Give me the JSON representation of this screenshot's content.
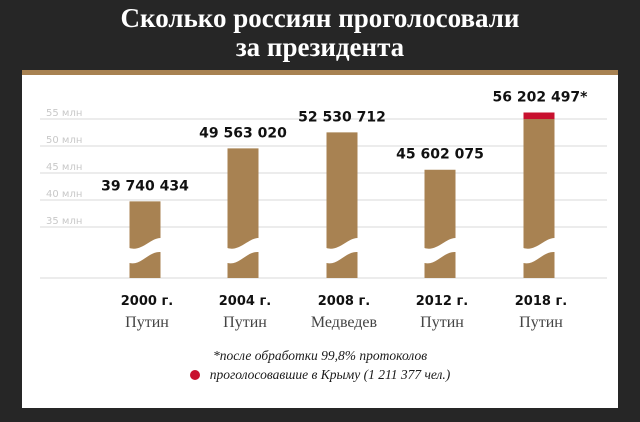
{
  "title_line1": "Сколько россиян проголосовали",
  "title_line2": "за президента",
  "colors": {
    "bar": "#a88252",
    "crimea": "#c8102e",
    "grid": "#d9d9d9",
    "tick": "#c8c8c8",
    "frame": "#a88252"
  },
  "chart_data": {
    "type": "bar",
    "categories": [
      "2000 г.",
      "2004 г.",
      "2008 г.",
      "2012 г.",
      "2018 г."
    ],
    "candidates": [
      "Путин",
      "Путин",
      "Медведев",
      "Путин",
      "Путин"
    ],
    "values": [
      39740434,
      49563020,
      52530712,
      45602075,
      56202497
    ],
    "value_labels": [
      "39 740 434",
      "49 563 020",
      "52 530 712",
      "45 602 075",
      "56 202 497*"
    ],
    "crimea_votes": [
      0,
      0,
      0,
      0,
      1211377
    ],
    "ytick_values": [
      35000000,
      40000000,
      45000000,
      50000000,
      55000000
    ],
    "ytick_labels": [
      "35 млн",
      "40 млн",
      "45 млн",
      "50 млн",
      "55 млн"
    ],
    "axis_break": true,
    "grid": true,
    "legend_placement": "bottom-center"
  },
  "footnote": "*после обработки 99,8% протоколов",
  "legend_crimea": "проголосовавшие в Крыму (1 211 377 чел.)"
}
